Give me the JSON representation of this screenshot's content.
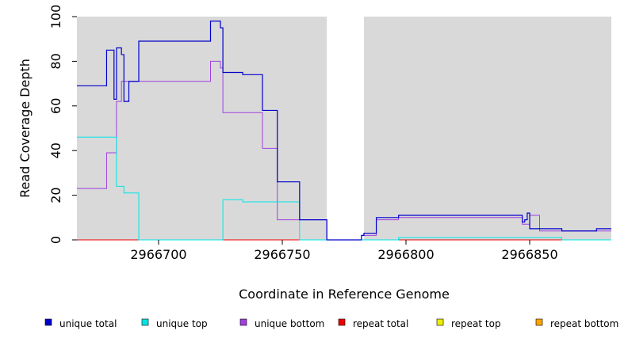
{
  "chart_data": {
    "type": "line",
    "step": true,
    "xlabel": "Coordinate in Reference Genome",
    "ylabel": "Read Coverage Depth",
    "xlim": [
      2966667,
      2966883
    ],
    "ylim": [
      0,
      100
    ],
    "xticks": [
      2966700,
      2966750,
      2966800,
      2966850
    ],
    "yticks": [
      0,
      20,
      40,
      60,
      80,
      100
    ],
    "shaded_regions": [
      [
        2966667,
        2966768
      ],
      [
        2966783,
        2966883
      ]
    ],
    "background_colors": {
      "shaded": "#d9d9d9",
      "gap": "#ffffff"
    },
    "legend_position": "bottom",
    "series": [
      {
        "name": "unique total",
        "color": "#0000cc",
        "x": [
          2966667,
          2966679,
          2966682,
          2966683,
          2966685,
          2966686,
          2966688,
          2966692,
          2966721,
          2966725,
          2966726,
          2966734,
          2966742,
          2966748,
          2966757,
          2966768,
          2966782,
          2966783,
          2966788,
          2966797,
          2966847,
          2966848,
          2966849,
          2966850,
          2966854,
          2966863,
          2966877,
          2966883
        ],
        "y": [
          69,
          85,
          63,
          86,
          83,
          62,
          71,
          89,
          98,
          95,
          75,
          74,
          58,
          26,
          9,
          0,
          2,
          3,
          10,
          11,
          8,
          9,
          12,
          5,
          5,
          4,
          5,
          5
        ]
      },
      {
        "name": "unique top",
        "color": "#00e5e5",
        "x": [
          2966667,
          2966682,
          2966683,
          2966685,
          2966686,
          2966692,
          2966726,
          2966734,
          2966757,
          2966768,
          2966797,
          2966863,
          2966883
        ],
        "y": [
          46,
          46,
          24,
          24,
          21,
          0,
          18,
          17,
          0,
          0,
          1,
          0,
          0
        ]
      },
      {
        "name": "unique bottom",
        "color": "#a040e0",
        "x": [
          2966667,
          2966679,
          2966683,
          2966685,
          2966692,
          2966721,
          2966725,
          2966726,
          2966742,
          2966748,
          2966757,
          2966768,
          2966782,
          2966788,
          2966797,
          2966847,
          2966850,
          2966854,
          2966863,
          2966883
        ],
        "y": [
          23,
          39,
          62,
          71,
          71,
          80,
          77,
          57,
          41,
          9,
          9,
          0,
          2,
          9,
          10,
          7,
          11,
          4,
          4,
          4
        ]
      },
      {
        "name": "repeat total",
        "color": "#ee0000",
        "x": [
          2966667,
          2966883
        ],
        "y": [
          0,
          0
        ]
      },
      {
        "name": "repeat top",
        "color": "#eeee00",
        "x": [
          2966667,
          2966883
        ],
        "y": [
          0,
          0
        ]
      },
      {
        "name": "repeat bottom",
        "color": "#ffa500",
        "x": [
          2966667,
          2966883
        ],
        "y": [
          0,
          0
        ]
      }
    ]
  }
}
